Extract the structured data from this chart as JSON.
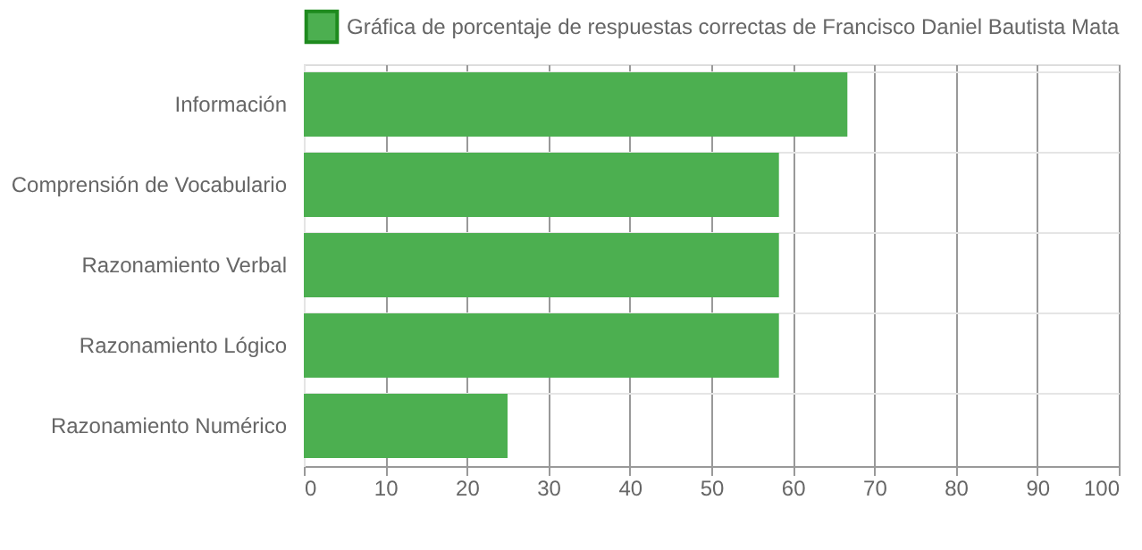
{
  "chart_data": {
    "type": "bar",
    "orientation": "horizontal",
    "categories": [
      "Información",
      "Comprensión de Vocabulario",
      "Razonamiento Verbal",
      "Razonamiento Lógico",
      "Razonamiento Numérico"
    ],
    "series": [
      {
        "name": "Gráfica de porcentaje de respuestas correctas de Francisco Daniel Bautista Mata",
        "color": "#4caf50",
        "values": [
          66.7,
          58.3,
          58.3,
          58.3,
          25
        ]
      }
    ],
    "xlim": [
      0,
      100
    ],
    "xticks": [
      0,
      10,
      20,
      30,
      40,
      50,
      60,
      70,
      80,
      90,
      100
    ],
    "grid": true,
    "legend": "top"
  }
}
